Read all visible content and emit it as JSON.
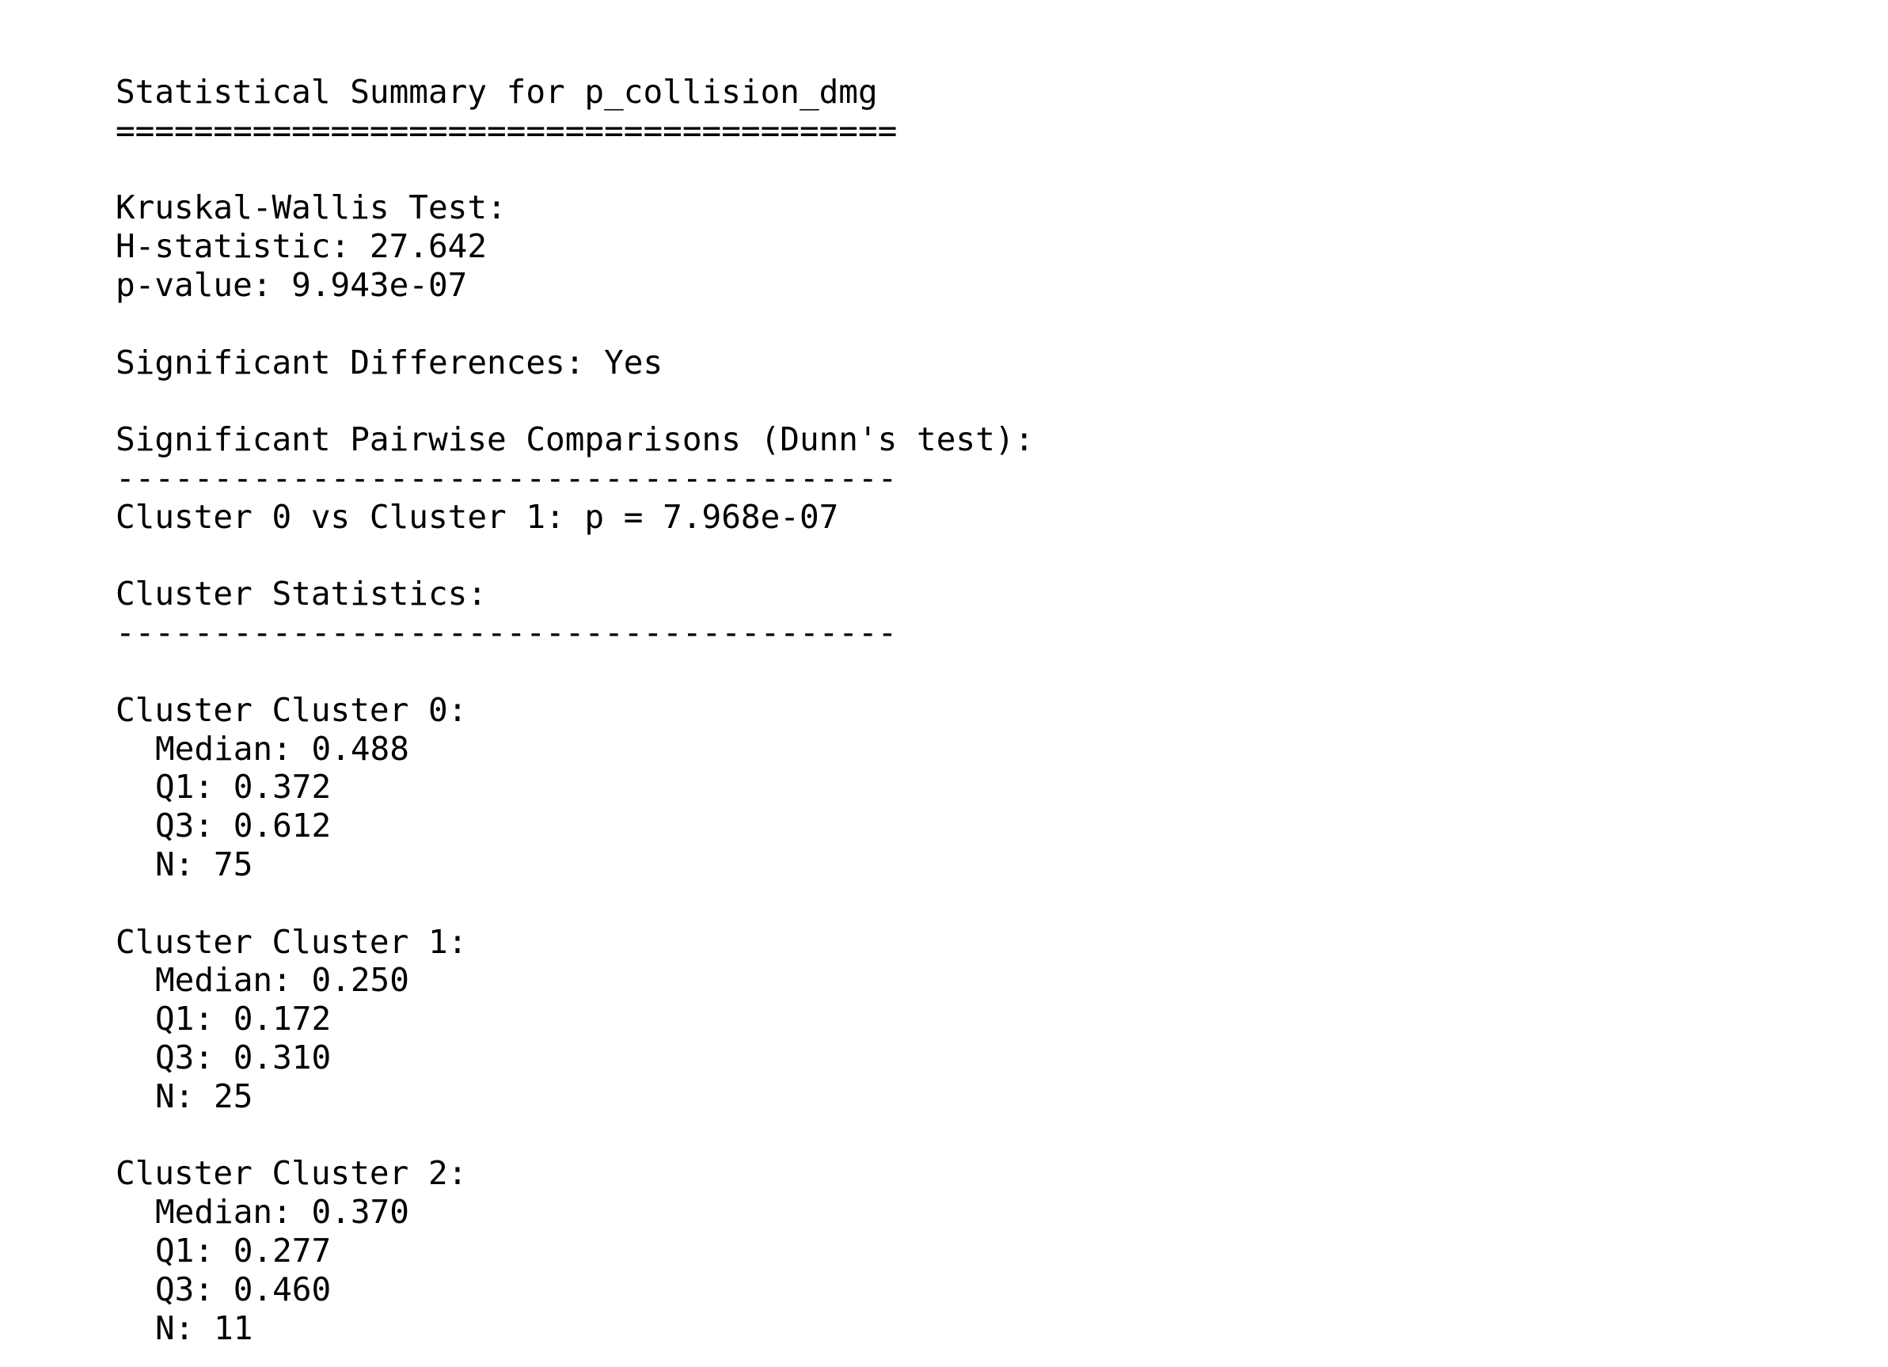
{
  "title": "Statistical Summary for p_collision_dmg",
  "title_rule": "========================================",
  "kruskal": {
    "heading": "Kruskal-Wallis Test:",
    "h_statistic": "H-statistic: 27.642",
    "p_value": "p-value: 9.943e-07"
  },
  "significant": "Significant Differences: Yes",
  "pairwise": {
    "heading": "Significant Pairwise Comparisons (Dunn's test):",
    "rule": "----------------------------------------",
    "comparisons": [
      "Cluster 0 vs Cluster 1: p = 7.968e-07"
    ]
  },
  "cluster_stats": {
    "heading": "Cluster Statistics:",
    "rule": "----------------------------------------",
    "clusters": [
      {
        "label": "Cluster Cluster 0:",
        "median": "Median: 0.488",
        "q1": "Q1: 0.372",
        "q3": "Q3: 0.612",
        "n": "N: 75"
      },
      {
        "label": "Cluster Cluster 1:",
        "median": "Median: 0.250",
        "q1": "Q1: 0.172",
        "q3": "Q3: 0.310",
        "n": "N: 25"
      },
      {
        "label": "Cluster Cluster 2:",
        "median": "Median: 0.370",
        "q1": "Q1: 0.277",
        "q3": "Q3: 0.460",
        "n": "N: 11"
      }
    ]
  }
}
